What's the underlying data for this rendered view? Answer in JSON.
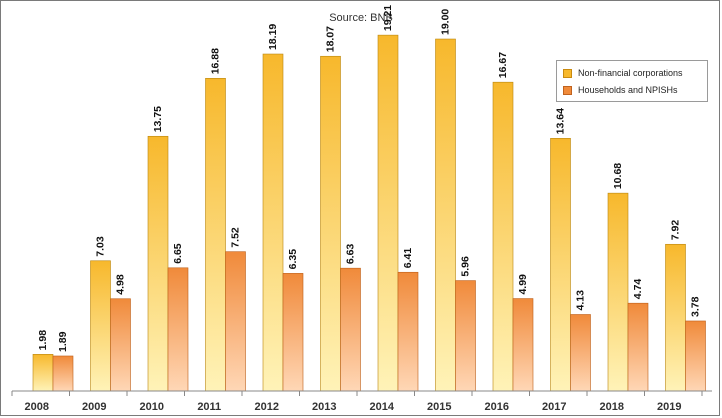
{
  "source": "Source: BNB",
  "colors": {
    "series1_light": "#fff3b8",
    "series1_dark": "#f7b82c",
    "series2_light": "#ffd7b6",
    "series2_dark": "#f08a3a"
  },
  "chart_data": {
    "type": "bar",
    "categories": [
      "2008",
      "2009",
      "2010",
      "2011",
      "2012",
      "2013",
      "2014",
      "2015",
      "2016",
      "2017",
      "2018",
      "2019"
    ],
    "series": [
      {
        "name": "Non-financial corporations",
        "values": [
          1.98,
          7.03,
          13.75,
          16.88,
          18.19,
          18.07,
          19.21,
          19.0,
          16.67,
          13.64,
          10.68,
          7.92
        ],
        "labels": [
          "1.98",
          "7.03",
          "13.75",
          "16.88",
          "18.19",
          "18.07",
          "19.21",
          "19.00",
          "16.67",
          "13.64",
          "10.68",
          "7.92"
        ]
      },
      {
        "name": "Households and NPISHs",
        "values": [
          1.89,
          4.98,
          6.65,
          7.52,
          6.35,
          6.63,
          6.41,
          5.96,
          4.99,
          4.13,
          4.74,
          3.78
        ],
        "labels": [
          "1.89",
          "4.98",
          "6.65",
          "7.52",
          "6.35",
          "6.63",
          "6.41",
          "5.96",
          "4.99",
          "4.13",
          "4.74",
          "3.78"
        ]
      }
    ],
    "ylim": [
      0,
      20
    ],
    "legend": "top-right",
    "grid": false
  }
}
